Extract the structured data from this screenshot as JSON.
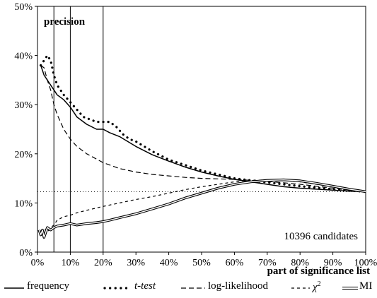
{
  "chart_data": {
    "type": "line",
    "title": "precision",
    "xlabel": "part of significance list",
    "ylabel": "",
    "xlim": [
      0,
      100
    ],
    "ylim": [
      0,
      50
    ],
    "x_ticks": [
      "0%",
      "10%",
      "20%",
      "30%",
      "40%",
      "50%",
      "60%",
      "70%",
      "80%",
      "90%",
      "100%"
    ],
    "y_ticks": [
      "0%",
      "10%",
      "20%",
      "30%",
      "40%",
      "50%"
    ],
    "annotation": "10396 candidates",
    "baseline": 12.3,
    "vertical_markers": [
      5,
      10,
      20
    ],
    "grid": false,
    "legend_position": "bottom",
    "series": [
      {
        "name": "frequency",
        "style": "solid",
        "x": [
          1,
          2,
          3,
          4,
          5,
          6,
          8,
          10,
          12,
          15,
          18,
          20,
          22,
          25,
          30,
          35,
          40,
          45,
          50,
          55,
          60,
          65,
          70,
          75,
          80,
          85,
          90,
          95,
          100
        ],
        "y": [
          38,
          36,
          35,
          34,
          33,
          32,
          31,
          29.5,
          27.5,
          26,
          25,
          25,
          24.3,
          23.5,
          21.5,
          19.8,
          18.5,
          17.3,
          16.3,
          15.5,
          14.8,
          14.3,
          13.8,
          13.3,
          13,
          12.8,
          12.6,
          12.4,
          12.3
        ]
      },
      {
        "name": "t-test",
        "style": "dotted",
        "x": [
          1,
          2,
          3,
          4,
          5,
          6,
          8,
          10,
          12,
          14,
          16,
          18,
          20,
          22,
          24,
          26,
          28,
          30,
          35,
          40,
          45,
          50,
          55,
          60,
          65,
          70,
          75,
          80,
          85,
          90,
          95,
          100
        ],
        "y": [
          38,
          39,
          40,
          39,
          36,
          34,
          32,
          30.5,
          29,
          27.5,
          27,
          26.5,
          26.5,
          26.5,
          25.5,
          24,
          23,
          22.5,
          20.5,
          18.8,
          17.7,
          16.6,
          15.8,
          15,
          14.6,
          14.2,
          13.8,
          13.4,
          13.1,
          12.8,
          12.5,
          12.3
        ]
      },
      {
        "name": "log-likelihood",
        "style": "dashed",
        "x": [
          1,
          2,
          3,
          4,
          5,
          6,
          8,
          10,
          12,
          15,
          20,
          25,
          30,
          35,
          40,
          45,
          50,
          55,
          60,
          65,
          70,
          75,
          80,
          85,
          90,
          95,
          100
        ],
        "y": [
          38,
          37.5,
          35,
          33,
          30,
          28,
          25,
          23,
          21.5,
          20,
          18.2,
          17,
          16.3,
          15.8,
          15.5,
          15.2,
          15,
          14.9,
          14.8,
          14.6,
          14.4,
          14.1,
          13.8,
          13.4,
          13,
          12.6,
          12.3
        ]
      },
      {
        "name": "χ²",
        "name_base": "χ",
        "name_exponent": "2",
        "style": "short-dashed",
        "x": [
          0.5,
          1,
          2,
          3,
          4,
          5,
          6,
          8,
          10,
          12,
          15,
          20,
          25,
          30,
          35,
          40,
          45,
          50,
          55,
          60,
          65,
          70,
          75,
          80,
          85,
          90,
          95,
          100
        ],
        "y": [
          4,
          3.5,
          4.8,
          4,
          5,
          5.5,
          6.5,
          7.2,
          7.5,
          8,
          8.5,
          9.3,
          10,
          10.7,
          11.3,
          12,
          12.7,
          13.3,
          13.8,
          14.3,
          14.6,
          14.7,
          14.6,
          14.3,
          13.8,
          13.3,
          12.8,
          12.3
        ]
      },
      {
        "name": "MI",
        "style": "double",
        "x": [
          0.5,
          1,
          1.5,
          2,
          3,
          4,
          5,
          6,
          8,
          10,
          12,
          15,
          18,
          20,
          22,
          25,
          30,
          35,
          40,
          45,
          50,
          55,
          60,
          65,
          70,
          75,
          80,
          85,
          90,
          95,
          100
        ],
        "y": [
          4.5,
          3.5,
          4.5,
          3,
          5,
          4.5,
          5,
          5.3,
          5.5,
          5.8,
          5.5,
          5.8,
          6,
          6.2,
          6.5,
          7,
          7.8,
          8.8,
          9.8,
          11,
          12,
          13,
          13.8,
          14.3,
          14.6,
          14.7,
          14.5,
          14,
          13.4,
          12.8,
          12.3
        ]
      }
    ]
  }
}
